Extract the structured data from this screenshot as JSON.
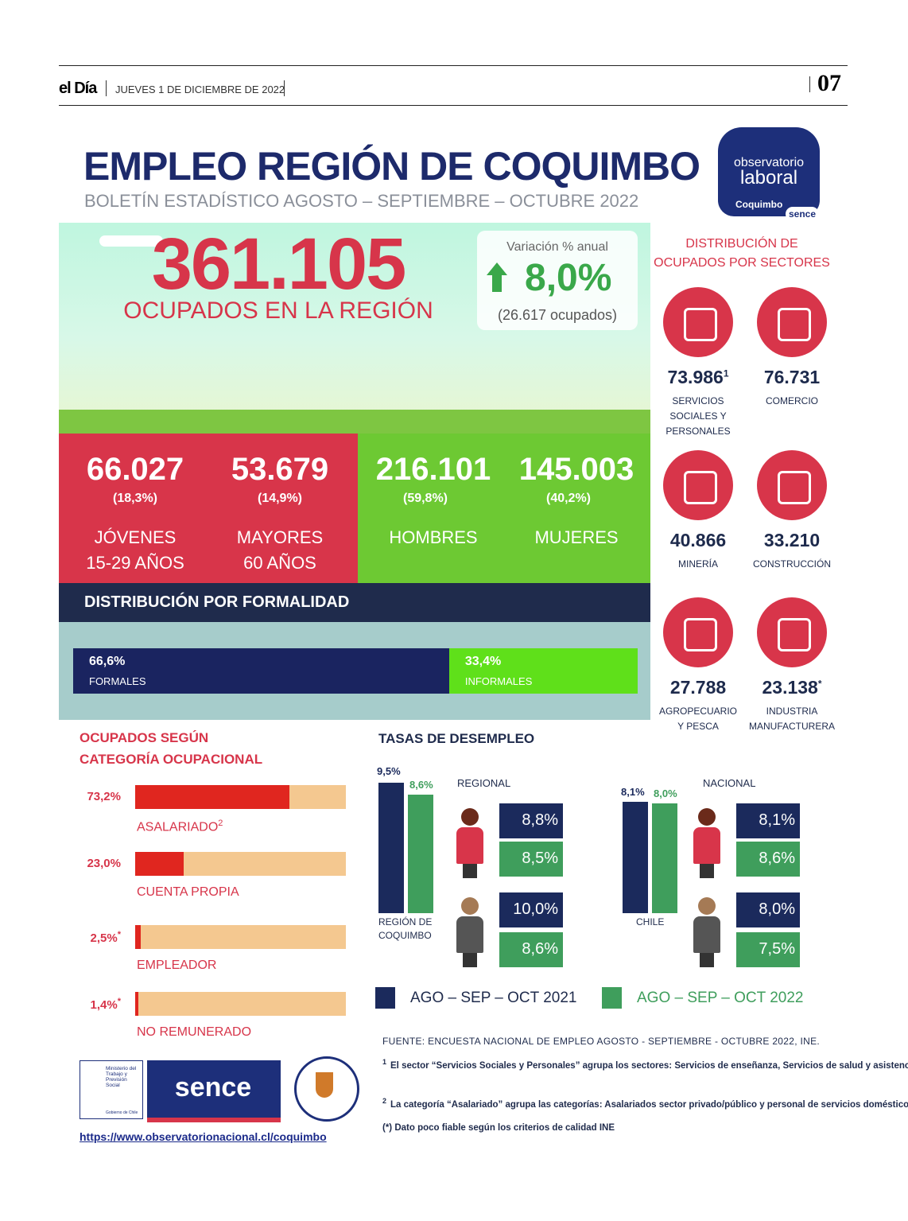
{
  "header": {
    "brand": "el Día",
    "date": "JUEVES 1 DE DICIEMBRE DE 2022",
    "page": "07"
  },
  "title": "EMPLEO REGIÓN DE COQUIMBO",
  "subtitle": "BOLETÍN ESTADÍSTICO AGOSTO – SEPTIEMBRE – OCTUBRE 2022",
  "logo": {
    "line1": "observatorio",
    "line2": "laboral",
    "region": "Coquimbo",
    "brand": "sence"
  },
  "hero": {
    "total": "361.105",
    "total_label": "OCUPADOS EN LA REGIÓN",
    "variation": {
      "title": "Variación % anual",
      "value": "8,0%",
      "detail": "(26.617 ocupados)"
    }
  },
  "stats": [
    {
      "value": "66.027",
      "share": "(18,3%)",
      "label": [
        "JÓVENES",
        "15-29 AÑOS"
      ]
    },
    {
      "value": "53.679",
      "share": "(14,9%)",
      "label": [
        "MAYORES",
        "60 AÑOS"
      ]
    },
    {
      "value": "216.101",
      "share": "(59,8%)",
      "label": [
        "HOMBRES"
      ]
    },
    {
      "value": "145.003",
      "share": "(40,2%)",
      "label": [
        "MUJERES"
      ]
    }
  ],
  "formality": {
    "title": "DISTRIBUCIÓN POR FORMALIDAD",
    "segments": [
      {
        "value": 66.6,
        "label": "66,6%",
        "name": "FORMALES",
        "color": "#1a2460"
      },
      {
        "value": 33.4,
        "label": "33,4%",
        "name": "INFORMALES",
        "color": "#5fe01a"
      }
    ]
  },
  "sectors": {
    "title": [
      "DISTRIBUCIÓN DE",
      "OCUPADOS POR SECTORES"
    ],
    "items": [
      {
        "value": "73.986",
        "note": "1",
        "label": [
          "SERVICIOS",
          "SOCIALES Y",
          "PERSONALES"
        ]
      },
      {
        "value": "76.731",
        "label": [
          "COMERCIO"
        ]
      },
      {
        "value": "40.866",
        "label": [
          "MINERÍA"
        ]
      },
      {
        "value": "33.210",
        "label": [
          "CONSTRUCCIÓN"
        ]
      },
      {
        "value": "27.788",
        "label": [
          "AGROPECUARIO",
          "Y PESCA"
        ]
      },
      {
        "value": "23.138",
        "note": "*",
        "label": [
          "INDUSTRIA",
          "MANUFACTURERA"
        ]
      }
    ]
  },
  "categories": {
    "title": [
      "OCUPADOS SEGÚN",
      "CATEGORÍA OCUPACIONAL"
    ],
    "items": [
      {
        "value": 73.2,
        "label": "73,2%",
        "name": "ASALARIADO",
        "name_note": "2"
      },
      {
        "value": 23.0,
        "label": "23,0%",
        "name": "CUENTA PROPIA"
      },
      {
        "value": 2.5,
        "label": "2,5%",
        "label_note": "*",
        "name": "EMPLEADOR"
      },
      {
        "value": 1.4,
        "label": "1,4%",
        "label_note": "*",
        "name": "NO REMUNERADO"
      }
    ]
  },
  "unemployment": {
    "title": "TASAS DE DESEMPLEO",
    "series": [
      {
        "name": "AGO – SEP – OCT 2021",
        "color": "#1b2a5c"
      },
      {
        "name": "AGO – SEP – OCT 2022",
        "color": "#3f9e5c"
      }
    ],
    "groups": [
      {
        "name": "REGIONAL",
        "place": [
          "REGIÓN DE",
          "COQUIMBO"
        ],
        "total": [
          {
            "value": 9.5,
            "label": "9,5%"
          },
          {
            "value": 8.6,
            "label": "8,6%"
          }
        ],
        "women": [
          {
            "value": 8.8,
            "label": "8,8%"
          },
          {
            "value": 8.5,
            "label": "8,5%"
          }
        ],
        "men": [
          {
            "value": 10.0,
            "label": "10,0%"
          },
          {
            "value": 8.6,
            "label": "8,6%"
          }
        ]
      },
      {
        "name": "NACIONAL",
        "place": [
          "CHILE"
        ],
        "total": [
          {
            "value": 8.1,
            "label": "8,1%"
          },
          {
            "value": 8.0,
            "label": "8,0%"
          }
        ],
        "women": [
          {
            "value": 8.1,
            "label": "8,1%"
          },
          {
            "value": 8.6,
            "label": "8,6%"
          }
        ],
        "men": [
          {
            "value": 8.0,
            "label": "8,0%"
          },
          {
            "value": 7.5,
            "label": "7,5%"
          }
        ]
      }
    ]
  },
  "footer": {
    "source": "FUENTE: ENCUESTA NACIONAL DE EMPLEO AGOSTO - SEPTIEMBRE - OCTUBRE 2022, INE.",
    "notes": [
      {
        "mark": "1",
        "text": "El sector “Servicios Sociales y Personales” agrupa los sectores: Servicios de enseñanza, Servicios de salud y asistencia social, Servicios de Recreación y otros servicios personales; y Actividades de los hogares como empleadores."
      },
      {
        "mark": "2",
        "text": "La categoría “Asalariado” agrupa las categorías: Asalariados sector privado/público y personal de servicios domésticos puertas adentro/afuera."
      },
      {
        "text": "(*) Dato poco fiable según los criterios de calidad INE"
      }
    ],
    "logos": {
      "ministry": "Ministerio del Trabajo y Previsión Social",
      "government": "Gobierno de Chile",
      "sence": "sence",
      "university": "UNIVERSIDAD CATÓLICA DEL NORTE"
    },
    "url": "https://www.observatorionacional.cl/coquimbo"
  }
}
